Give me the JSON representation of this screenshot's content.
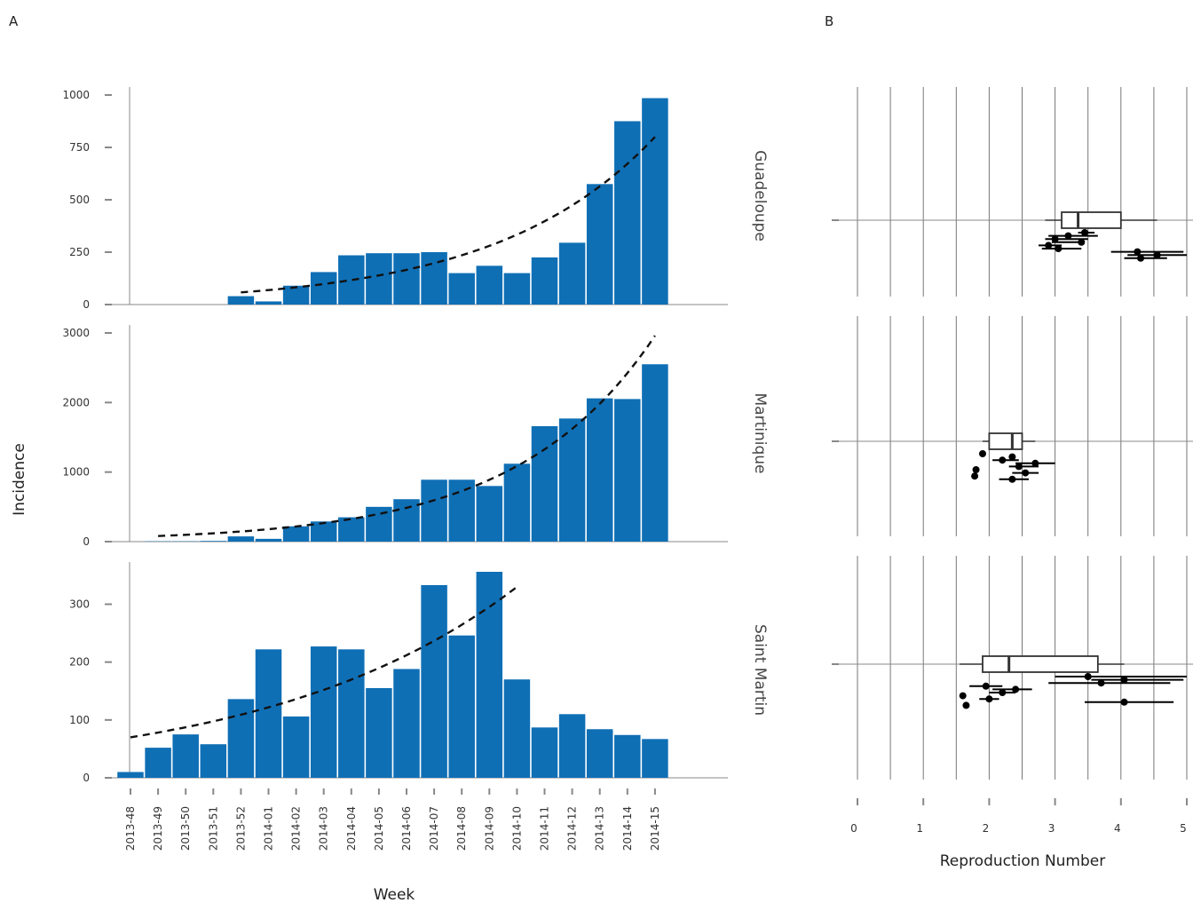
{
  "panel_labels": [
    "A",
    "B"
  ],
  "chart_data": [
    {
      "type": "bar",
      "panel": "A",
      "xlabel": "Week",
      "ylabel": "Incidence",
      "categories": [
        "2013-48",
        "2013-49",
        "2013-50",
        "2013-51",
        "2013-52",
        "2014-01",
        "2014-02",
        "2014-03",
        "2014-04",
        "2014-05",
        "2014-06",
        "2014-07",
        "2014-08",
        "2014-09",
        "2014-10",
        "2014-11",
        "2014-12",
        "2014-13",
        "2014-14",
        "2014-15"
      ],
      "colors": {
        "bar": "#0f6fb5",
        "fit": "#111111",
        "axis": "#777777"
      },
      "facets": [
        {
          "name": "Guadeloupe",
          "ylim": [
            0,
            1000
          ],
          "yticks": [
            0,
            250,
            500,
            750,
            1000
          ],
          "values": [
            0,
            0,
            0,
            0,
            40,
            15,
            90,
            155,
            235,
            245,
            245,
            250,
            150,
            185,
            150,
            225,
            295,
            575,
            875,
            985
          ],
          "fit": {
            "x": [
              "2013-52",
              "2014-15"
            ],
            "y": [
              58,
              800
            ]
          }
        },
        {
          "name": "Martinique",
          "ylim": [
            0,
            3000
          ],
          "yticks": [
            0,
            1000,
            2000,
            3000
          ],
          "values": [
            0,
            5,
            5,
            10,
            75,
            40,
            220,
            290,
            350,
            500,
            610,
            890,
            890,
            800,
            1120,
            1660,
            1770,
            2060,
            2050,
            2550
          ],
          "fit": {
            "x": [
              "2013-49",
              "2014-15"
            ],
            "y": [
              80,
              2960
            ]
          }
        },
        {
          "name": "Saint Martin",
          "ylim": [
            0,
            360
          ],
          "yticks": [
            0,
            100,
            200,
            300
          ],
          "values": [
            10,
            52,
            75,
            58,
            136,
            222,
            106,
            227,
            222,
            155,
            188,
            333,
            246,
            356,
            170,
            87,
            110,
            84,
            74,
            67
          ],
          "fit": {
            "x": [
              "2013-48",
              "2014-10"
            ],
            "y": [
              70,
              330
            ]
          }
        }
      ]
    },
    {
      "type": "box",
      "panel": "B",
      "xlabel": "Reproduction Number",
      "xlim": [
        0,
        5
      ],
      "xticks": [
        0,
        1,
        2,
        3,
        4,
        5
      ],
      "facets": [
        {
          "name": "Guadeloupe",
          "box": {
            "whisker_low": 2.85,
            "q1": 3.1,
            "median": 3.35,
            "q3": 4.0,
            "whisker_high": 4.55
          },
          "estimates": [
            {
              "value": 3.45,
              "low": 3.35,
              "high": 3.6
            },
            {
              "value": 3.2,
              "low": 2.9,
              "high": 3.65
            },
            {
              "value": 3.0,
              "low": 2.85,
              "high": 3.5
            },
            {
              "value": 3.4,
              "low": 2.95,
              "high": 3.45
            },
            {
              "value": 2.9,
              "low": 2.75,
              "high": 3.1
            },
            {
              "value": 3.05,
              "low": 2.8,
              "high": 3.4
            },
            {
              "value": 4.25,
              "low": 3.85,
              "high": 4.95
            },
            {
              "value": 4.55,
              "low": 4.1,
              "high": 5.0
            },
            {
              "value": 4.3,
              "low": 4.05,
              "high": 4.7
            }
          ]
        },
        {
          "name": "Martinique",
          "box": {
            "whisker_low": 1.9,
            "q1": 2.0,
            "median": 2.35,
            "q3": 2.5,
            "whisker_high": 2.7
          },
          "estimates": [
            {
              "value": 1.9,
              "low": 1.88,
              "high": 1.92
            },
            {
              "value": 2.35,
              "low": 2.3,
              "high": 2.4
            },
            {
              "value": 2.2,
              "low": 2.05,
              "high": 2.45
            },
            {
              "value": 2.7,
              "low": 2.4,
              "high": 3.0
            },
            {
              "value": 2.45,
              "low": 2.3,
              "high": 2.75
            },
            {
              "value": 1.8,
              "low": 1.78,
              "high": 1.82
            },
            {
              "value": 2.55,
              "low": 2.35,
              "high": 2.75
            },
            {
              "value": 1.78,
              "low": 1.76,
              "high": 1.8
            },
            {
              "value": 2.35,
              "low": 2.15,
              "high": 2.6
            }
          ]
        },
        {
          "name": "Saint Martin",
          "box": {
            "whisker_low": 1.55,
            "q1": 1.9,
            "median": 2.3,
            "q3": 3.65,
            "whisker_high": 4.05
          },
          "estimates": [
            {
              "value": 3.5,
              "low": 3.0,
              "high": 5.0
            },
            {
              "value": 4.05,
              "low": 3.55,
              "high": 4.95
            },
            {
              "value": 3.7,
              "low": 2.9,
              "high": 4.75
            },
            {
              "value": 1.95,
              "low": 1.7,
              "high": 2.2
            },
            {
              "value": 2.4,
              "low": 2.05,
              "high": 2.65
            },
            {
              "value": 2.2,
              "low": 2.0,
              "high": 2.4
            },
            {
              "value": 1.6,
              "low": 1.58,
              "high": 1.62
            },
            {
              "value": 2.0,
              "low": 1.85,
              "high": 2.15
            },
            {
              "value": 4.05,
              "low": 3.45,
              "high": 4.8
            },
            {
              "value": 1.65,
              "low": 1.63,
              "high": 1.67
            }
          ]
        }
      ]
    }
  ]
}
